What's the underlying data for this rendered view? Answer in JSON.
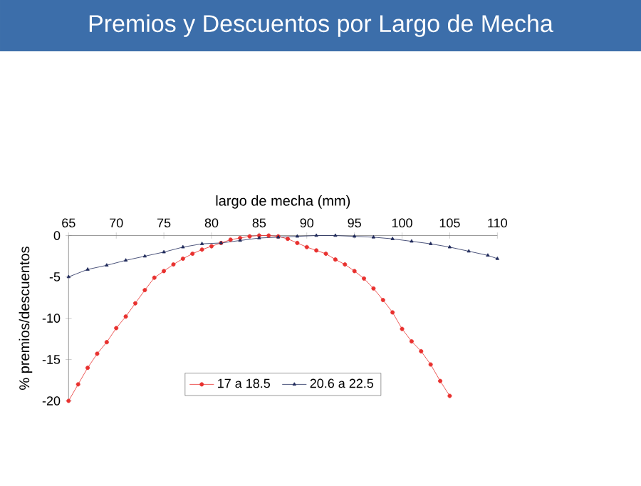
{
  "chart_data": {
    "type": "line",
    "title": "Premios y Descuentos por Largo de Mecha",
    "xlabel": "largo de mecha (mm)",
    "ylabel": "% premios/descuentos",
    "xlim": [
      65,
      110
    ],
    "xticks": [
      65,
      70,
      75,
      80,
      85,
      90,
      95,
      100,
      105,
      110
    ],
    "ylim": [
      -20,
      0
    ],
    "yticks": [
      -20,
      -15,
      -10,
      -5,
      0
    ],
    "legend": "bottom",
    "grid": false,
    "line_style": "solid",
    "series": [
      {
        "name": "17 a 18.5",
        "color": "#e8312f",
        "marker": "circle",
        "x": [
          65,
          66,
          67,
          68,
          69,
          70,
          71,
          72,
          73,
          74,
          75,
          76,
          77,
          78,
          79,
          80,
          81,
          82,
          83,
          84,
          85,
          86,
          87,
          88,
          89,
          90,
          91,
          92,
          93,
          94,
          95,
          96,
          97,
          98,
          99,
          100,
          101,
          102,
          103,
          104,
          105
        ],
        "values": [
          -20,
          -18,
          -16,
          -14.3,
          -12.9,
          -11.2,
          -9.8,
          -8.2,
          -6.6,
          -5.1,
          -4.3,
          -3.5,
          -2.8,
          -2.2,
          -1.7,
          -1.3,
          -0.9,
          -0.5,
          -0.3,
          -0.1,
          0,
          0,
          -0.1,
          -0.4,
          -0.9,
          -1.4,
          -1.8,
          -2.2,
          -2.9,
          -3.5,
          -4.3,
          -5.2,
          -6.4,
          -7.8,
          -9.3,
          -11.3,
          -12.8,
          -14,
          -15.6,
          -17.6,
          -19.4
        ]
      },
      {
        "name": "20.6 a 22.5",
        "color": "#1f2a5a",
        "marker": "triangle",
        "x": [
          65,
          67,
          69,
          71,
          73,
          75,
          77,
          79,
          81,
          83,
          85,
          87,
          89,
          91,
          93,
          95,
          97,
          99,
          101,
          103,
          105,
          107,
          109,
          110
        ],
        "values": [
          -5,
          -4.1,
          -3.6,
          -3,
          -2.5,
          -2,
          -1.4,
          -1,
          -0.9,
          -0.6,
          -0.3,
          -0.2,
          -0.1,
          0,
          0,
          -0.1,
          -0.2,
          -0.4,
          -0.7,
          -1,
          -1.4,
          -1.9,
          -2.4,
          -2.8
        ]
      }
    ]
  }
}
